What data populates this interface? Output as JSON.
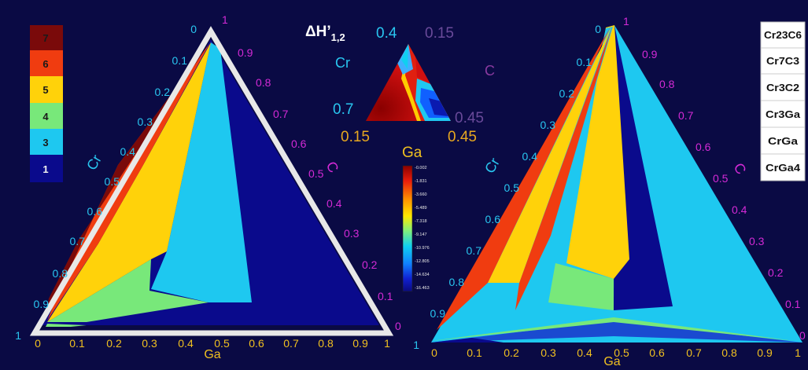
{
  "colors": {
    "background": "#0a0a44",
    "axis_cr": "#29c6f0",
    "axis_c": "#d42ad6",
    "axis_ga": "#f0c020",
    "phase_1": "#0a0a8c",
    "phase_3": "#1ec8f0",
    "phase_4": "#78e87a",
    "phase_5": "#ffd20a",
    "phase_6": "#f03c10",
    "phase_7": "#7a0a0a"
  },
  "left_legend": [
    "7",
    "6",
    "5",
    "4",
    "3",
    "1"
  ],
  "right_legend": [
    "Cr23C6",
    "Cr7C3",
    "Cr3C2",
    "Cr3Ga",
    "CrGa",
    "CrGa4"
  ],
  "axes": {
    "cr_label": "Cr",
    "c_label": "C",
    "ga_label": "Ga",
    "cr_ticks_left": [
      "0",
      "0.1",
      "0.2",
      "0.3",
      "0.4",
      "0.5",
      "0.6",
      "0.7",
      "0.8",
      "0.9",
      "1"
    ],
    "cr_ticks_right": [
      "0",
      "0.1",
      "0.2",
      "0.3",
      "0.4",
      "0.5",
      "0.6",
      "0.7",
      "0.8",
      "0.9",
      "1"
    ],
    "c_ticks_left": [
      "1",
      "0.9",
      "0.8",
      "0.7",
      "0.6",
      "0.5",
      "0.4",
      "0.3",
      "0.2",
      "0.1",
      "0"
    ],
    "c_ticks_right": [
      "1",
      "0.9",
      "0.8",
      "0.7",
      "0.6",
      "0.5",
      "0.4",
      "0.3",
      "0.2",
      "0.1",
      "0"
    ],
    "ga_ticks": [
      "0",
      "0.1",
      "0.2",
      "0.3",
      "0.4",
      "0.5",
      "0.6",
      "0.7",
      "0.8",
      "0.9",
      "1"
    ]
  },
  "inset": {
    "title_main": "ΔH’",
    "title_sub": "1,2",
    "cr_label": "Cr",
    "c_label": "C",
    "ga_label": "Ga",
    "top_left": "0.4",
    "top_right": "0.15",
    "left_value": "0.7",
    "right_value": "0.45",
    "bottom_left": "0.15",
    "bottom_right": "0.45",
    "colorbar_ticks": [
      "-0.002",
      "-1.831",
      "-3.660",
      "-5.489",
      "-7.318",
      "-9.147",
      "-10.976",
      "-12.805",
      "-14.634",
      "-16.463"
    ]
  }
}
